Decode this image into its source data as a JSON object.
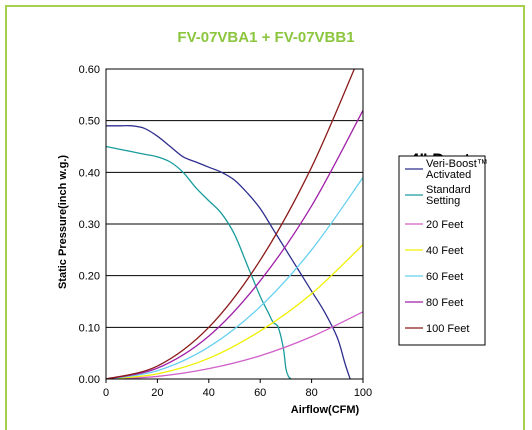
{
  "chart_data": {
    "type": "line",
    "title": "FV-07VBA1 + FV-07VBB1",
    "subtitle": "4\" Duct",
    "xlabel": "Airflow(CFM)",
    "ylabel": "Static Pressure(inch w.g.)",
    "xlim": [
      0,
      100
    ],
    "ylim": [
      0,
      0.6
    ],
    "x_ticks": [
      "0",
      "20",
      "40",
      "60",
      "80",
      "100"
    ],
    "y_ticks": [
      "0.00",
      "0.10",
      "0.20",
      "0.30",
      "0.40",
      "0.50",
      "0.60"
    ],
    "grid": "horizontal",
    "legend_position": "right",
    "series": [
      {
        "name": "Veri-Boost™ Activated",
        "color": "#2f2f8f",
        "x": [
          0,
          5,
          10,
          15,
          20,
          25,
          30,
          35,
          40,
          45,
          50,
          55,
          60,
          65,
          70,
          75,
          80,
          85,
          90,
          93,
          95
        ],
        "y": [
          0.49,
          0.49,
          0.49,
          0.485,
          0.47,
          0.45,
          0.43,
          0.42,
          0.41,
          0.4,
          0.385,
          0.36,
          0.33,
          0.29,
          0.25,
          0.21,
          0.17,
          0.13,
          0.08,
          0.03,
          0.0
        ]
      },
      {
        "name": "Standard Setting",
        "color": "#1a9c9c",
        "x": [
          0,
          5,
          10,
          15,
          20,
          25,
          30,
          35,
          40,
          45,
          50,
          55,
          60,
          63,
          65,
          67,
          69,
          70,
          71,
          72
        ],
        "y": [
          0.45,
          0.445,
          0.44,
          0.435,
          0.43,
          0.42,
          0.4,
          0.37,
          0.345,
          0.32,
          0.28,
          0.22,
          0.16,
          0.13,
          0.11,
          0.1,
          0.06,
          0.02,
          0.005,
          0.0
        ]
      },
      {
        "name": "20 Feet",
        "color": "#d060c8",
        "x": [
          0,
          20,
          40,
          60,
          80,
          100
        ],
        "y": [
          0.0,
          0.005,
          0.02,
          0.045,
          0.082,
          0.13
        ]
      },
      {
        "name": "40 Feet",
        "color": "#f0f000",
        "x": [
          0,
          20,
          40,
          60,
          80,
          100
        ],
        "y": [
          0.0,
          0.01,
          0.04,
          0.093,
          0.165,
          0.26
        ]
      },
      {
        "name": "60 Feet",
        "color": "#66d0f0",
        "x": [
          0,
          20,
          40,
          60,
          80,
          100
        ],
        "y": [
          0.0,
          0.016,
          0.062,
          0.14,
          0.25,
          0.39
        ]
      },
      {
        "name": "80 Feet",
        "color": "#a020a8",
        "x": [
          0,
          20,
          40,
          60,
          80,
          100
        ],
        "y": [
          0.0,
          0.021,
          0.083,
          0.19,
          0.335,
          0.52
        ]
      },
      {
        "name": "100 Feet",
        "color": "#8b1a1a",
        "x": [
          0,
          20,
          40,
          60,
          80,
          100
        ],
        "y": [
          0.0,
          0.025,
          0.1,
          0.23,
          0.41,
          0.64
        ]
      }
    ]
  },
  "colors": {
    "frame_border": "#a6cf4d",
    "title": "#8cc63f",
    "grid": "#000000"
  }
}
